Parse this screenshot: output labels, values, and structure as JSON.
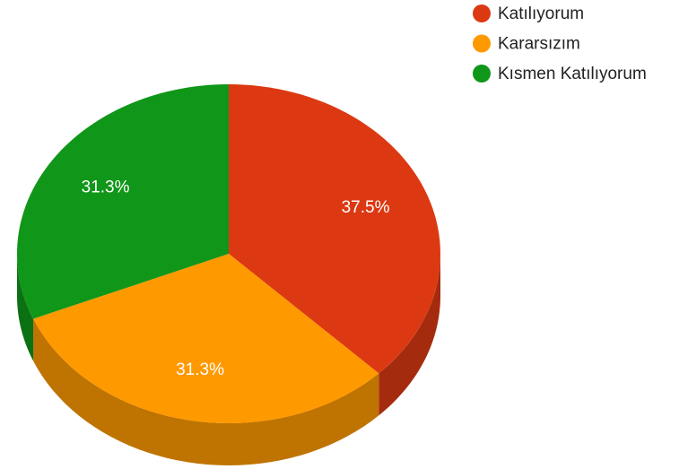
{
  "chart_data": {
    "type": "pie",
    "three_d": true,
    "categories": [
      "Katılıyorum",
      "Kararsızım",
      "Kısmen Katılıyorum"
    ],
    "values": [
      37.5,
      31.3,
      31.3
    ],
    "value_labels": [
      "37.5%",
      "31.3%",
      "31.3%"
    ],
    "colors": [
      "#dc3912",
      "#ff9900",
      "#109618"
    ],
    "legend": "top-right"
  }
}
